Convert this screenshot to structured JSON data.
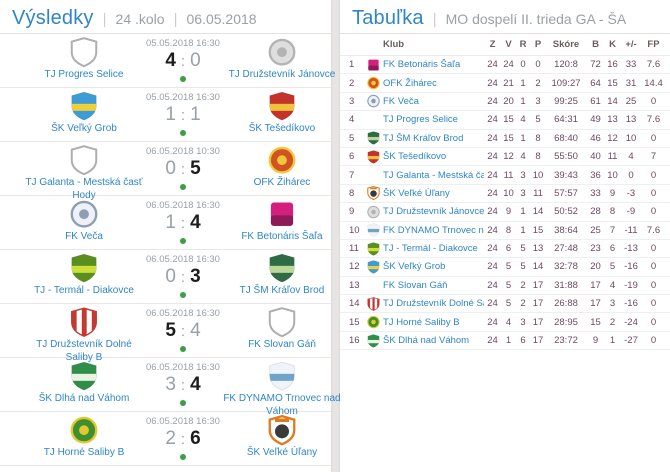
{
  "sep": "|",
  "colon": ":",
  "colors": {
    "accent_blue": "#2f86c6",
    "link_blue": "#2f86c6",
    "muted_gray": "#98a1a8",
    "stat_plum": "#6d4862",
    "status_green": "#3d9e47"
  },
  "results": {
    "title": "Výsledky",
    "round": "24 .kolo",
    "date": "06.05.2018",
    "matches": [
      {
        "home": "TJ Progres Selice",
        "away": "TJ Družstevník Jánovce",
        "datetime": "05.05.2018 16:30",
        "home_score": "4",
        "away_score": "0",
        "outcome": "home"
      },
      {
        "home": "ŠK Veľký Grob",
        "away": "ŠK Tešedíkovo",
        "datetime": "05.05.2018 16:30",
        "home_score": "1",
        "away_score": "1",
        "outcome": "draw"
      },
      {
        "home": "TJ Galanta - Mestská časť Hody",
        "away": "OFK Žihárec",
        "datetime": "06.05.2018 10:30",
        "home_score": "0",
        "away_score": "5",
        "outcome": "away"
      },
      {
        "home": "FK Veča",
        "away": "FK Betonáris Šaľa",
        "datetime": "06.05.2018 16:30",
        "home_score": "1",
        "away_score": "4",
        "outcome": "away"
      },
      {
        "home": "TJ - Termál - Diakovce",
        "away": "TJ ŠM Kráľov Brod",
        "datetime": "06.05.2018 16:30",
        "home_score": "0",
        "away_score": "3",
        "outcome": "away"
      },
      {
        "home": "TJ Družstevník Dolné Saliby B",
        "away": "FK Slovan Gáň",
        "datetime": "06.05.2018 16:30",
        "home_score": "5",
        "away_score": "4",
        "outcome": "home"
      },
      {
        "home": "ŠK Dlhá nad Váhom",
        "away": "FK DYNAMO Trnovec nad Váhom",
        "datetime": "06.05.2018 16:30",
        "home_score": "3",
        "away_score": "4",
        "outcome": "away"
      },
      {
        "home": "TJ Horné Saliby B",
        "away": "ŠK Veľké Úľany",
        "datetime": "06.05.2018 16:30",
        "home_score": "2",
        "away_score": "6",
        "outcome": "away"
      }
    ]
  },
  "table": {
    "title": "Tabuľka",
    "subtitle": "MO dospelí II. trieda GA - ŠA",
    "columns": [
      "Klub",
      "Z",
      "V",
      "R",
      "P",
      "Skóre",
      "B",
      "K",
      "+/-",
      "FP"
    ],
    "rows": [
      {
        "pos": "1",
        "club": "FK Betonáris Šaľa",
        "z": "24",
        "v": "24",
        "r": "0",
        "p": "0",
        "score": "120:8",
        "b": "72",
        "k": "16",
        "pm": "33",
        "fp": "7.6"
      },
      {
        "pos": "2",
        "club": "OFK Žihárec",
        "z": "24",
        "v": "21",
        "r": "1",
        "p": "2",
        "score": "109:27",
        "b": "64",
        "k": "15",
        "pm": "31",
        "fp": "14.4"
      },
      {
        "pos": "3",
        "club": "FK Veča",
        "z": "24",
        "v": "20",
        "r": "1",
        "p": "3",
        "score": "99:25",
        "b": "61",
        "k": "14",
        "pm": "25",
        "fp": "0"
      },
      {
        "pos": "4",
        "club": "TJ Progres Selice",
        "z": "24",
        "v": "15",
        "r": "4",
        "p": "5",
        "score": "64:31",
        "b": "49",
        "k": "13",
        "pm": "13",
        "fp": "7.6"
      },
      {
        "pos": "5",
        "club": "TJ ŠM Kráľov Brod",
        "z": "24",
        "v": "15",
        "r": "1",
        "p": "8",
        "score": "68:40",
        "b": "46",
        "k": "12",
        "pm": "10",
        "fp": "0"
      },
      {
        "pos": "6",
        "club": "ŠK Tešedíkovo",
        "z": "24",
        "v": "12",
        "r": "4",
        "p": "8",
        "score": "55:50",
        "b": "40",
        "k": "11",
        "pm": "4",
        "fp": "7"
      },
      {
        "pos": "7",
        "club": "TJ Galanta - Mestská časť Hody",
        "z": "24",
        "v": "11",
        "r": "3",
        "p": "10",
        "score": "39:43",
        "b": "36",
        "k": "10",
        "pm": "0",
        "fp": "0"
      },
      {
        "pos": "8",
        "club": "ŠK Veľké Úľany",
        "z": "24",
        "v": "10",
        "r": "3",
        "p": "11",
        "score": "57:57",
        "b": "33",
        "k": "9",
        "pm": "-3",
        "fp": "0"
      },
      {
        "pos": "9",
        "club": "TJ Družstevník Jánovce",
        "z": "24",
        "v": "9",
        "r": "1",
        "p": "14",
        "score": "50:52",
        "b": "28",
        "k": "8",
        "pm": "-9",
        "fp": "0"
      },
      {
        "pos": "10",
        "club": "FK DYNAMO Trnovec nad Váhom",
        "z": "24",
        "v": "8",
        "r": "1",
        "p": "15",
        "score": "38:64",
        "b": "25",
        "k": "7",
        "pm": "-11",
        "fp": "7.6"
      },
      {
        "pos": "11",
        "club": "TJ - Termál - Diakovce",
        "z": "24",
        "v": "6",
        "r": "5",
        "p": "13",
        "score": "27:48",
        "b": "23",
        "k": "6",
        "pm": "-13",
        "fp": "0"
      },
      {
        "pos": "12",
        "club": "ŠK Veľký Grob",
        "z": "24",
        "v": "5",
        "r": "5",
        "p": "14",
        "score": "32:78",
        "b": "20",
        "k": "5",
        "pm": "-16",
        "fp": "0"
      },
      {
        "pos": "13",
        "club": "FK Slovan Gáň",
        "z": "24",
        "v": "5",
        "r": "2",
        "p": "17",
        "score": "31:88",
        "b": "17",
        "k": "4",
        "pm": "-19",
        "fp": "0"
      },
      {
        "pos": "14",
        "club": "TJ Družstevník Dolné Saliby B",
        "z": "24",
        "v": "5",
        "r": "2",
        "p": "17",
        "score": "26:88",
        "b": "17",
        "k": "3",
        "pm": "-16",
        "fp": "0"
      },
      {
        "pos": "15",
        "club": "TJ Horné Saliby B",
        "z": "24",
        "v": "4",
        "r": "3",
        "p": "17",
        "score": "28:95",
        "b": "15",
        "k": "2",
        "pm": "-24",
        "fp": "0"
      },
      {
        "pos": "16",
        "club": "ŠK Dlhá nad Váhom",
        "z": "24",
        "v": "1",
        "r": "6",
        "p": "17",
        "score": "23:72",
        "b": "9",
        "k": "1",
        "pm": "-27",
        "fp": "0"
      }
    ]
  },
  "clubs": {
    "TJ Progres Selice": {
      "logo": {
        "style": "outline",
        "colors": [
          "#ffffff",
          "#aeaeae"
        ]
      }
    },
    "TJ Družstevník Jánovce": {
      "logo": {
        "style": "circle",
        "colors": [
          "#dedede",
          "#b3b3b3"
        ]
      }
    },
    "ŠK Veľký Grob": {
      "logo": {
        "style": "shield-band",
        "colors": [
          "#3d9bd5",
          "#f0d03a"
        ]
      }
    },
    "ŠK Tešedíkovo": {
      "logo": {
        "style": "shield-band",
        "colors": [
          "#c4322b",
          "#f0c23a"
        ]
      }
    },
    "TJ Galanta - Mestská časť Hody": {
      "logo": {
        "style": "outline",
        "colors": [
          "#ffffff",
          "#aeaeae"
        ]
      }
    },
    "OFK Žihárec": {
      "logo": {
        "style": "circle",
        "colors": [
          "#d1531f",
          "#f3c73d"
        ]
      }
    },
    "FK Veča": {
      "logo": {
        "style": "circle",
        "colors": [
          "#eef1f6",
          "#8d9db5"
        ]
      }
    },
    "FK Betonáris Šaľa": {
      "logo": {
        "style": "square",
        "colors": [
          "#d51f7e",
          "#8c1b56"
        ]
      }
    },
    "TJ - Termál - Diakovce": {
      "logo": {
        "style": "shield-band",
        "colors": [
          "#5a8f1f",
          "#cddf3a"
        ]
      }
    },
    "TJ ŠM Kráľov Brod": {
      "logo": {
        "style": "shield-band",
        "colors": [
          "#2f6b45",
          "#bcd79a"
        ]
      }
    },
    "TJ Družstevník Dolné Saliby B": {
      "logo": {
        "style": "stripes",
        "colors": [
          "#c23a33",
          "#ffffff"
        ]
      }
    },
    "FK Slovan Gáň": {
      "logo": {
        "style": "outline",
        "colors": [
          "#ffffff",
          "#aeaeae"
        ]
      }
    },
    "ŠK Dlhá nad Váhom": {
      "logo": {
        "style": "shield-band",
        "colors": [
          "#2f8f4a",
          "#eaf3e2"
        ]
      }
    },
    "FK DYNAMO Trnovec nad Váhom": {
      "logo": {
        "style": "shield-band",
        "colors": [
          "#eef4f9",
          "#6fa3c9"
        ]
      }
    },
    "TJ Horné Saliby B": {
      "logo": {
        "style": "circle",
        "colors": [
          "#3f8f2f",
          "#e3c832"
        ]
      }
    },
    "ŠK Veľké Úľany": {
      "logo": {
        "style": "ball-shield",
        "colors": [
          "#ffffff",
          "#e07a1f",
          "#3a3a3a"
        ]
      }
    }
  }
}
